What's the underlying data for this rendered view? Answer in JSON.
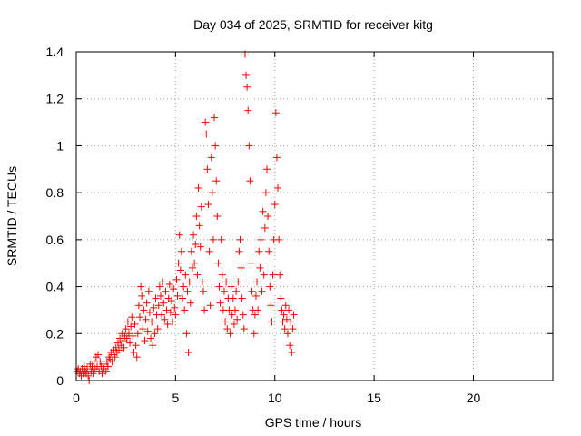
{
  "chart_data": {
    "type": "scatter",
    "title": "Day 034 of 2025, SRMTID for receiver kitg",
    "xlabel": "GPS time / hours",
    "ylabel": "SRMTID / TECUs",
    "xlim": [
      0,
      24
    ],
    "ylim": [
      0,
      1.4
    ],
    "x_ticks": [
      0,
      5,
      10,
      15,
      20
    ],
    "x_tick_labels": [
      "0",
      "5",
      "10",
      "15",
      "20"
    ],
    "y_ticks": [
      0,
      0.2,
      0.4,
      0.6,
      0.8,
      1.0,
      1.2,
      1.4
    ],
    "y_tick_labels": [
      "0",
      "0.2",
      "0.4",
      "0.6",
      "0.8",
      "1",
      "1.2",
      "1.4"
    ],
    "grid": true,
    "marker": "+",
    "series": [
      {
        "name": "SRMTID",
        "color": "#ff0000",
        "points": [
          [
            0.05,
            0.04
          ],
          [
            0.1,
            0.05
          ],
          [
            0.15,
            0.03
          ],
          [
            0.2,
            0.04
          ],
          [
            0.25,
            0.02
          ],
          [
            0.3,
            0.05
          ],
          [
            0.35,
            0.03
          ],
          [
            0.4,
            0.06
          ],
          [
            0.45,
            0.04
          ],
          [
            0.5,
            0.03
          ],
          [
            0.55,
            0.05
          ],
          [
            0.6,
            0.02
          ],
          [
            0.65,
            0.0
          ],
          [
            0.7,
            0.07
          ],
          [
            0.75,
            0.04
          ],
          [
            0.8,
            0.06
          ],
          [
            0.85,
            0.03
          ],
          [
            0.9,
            0.08
          ],
          [
            0.95,
            0.05
          ],
          [
            1.0,
            0.1
          ],
          [
            1.05,
            0.06
          ],
          [
            1.1,
            0.11
          ],
          [
            1.15,
            0.04
          ],
          [
            1.2,
            0.08
          ],
          [
            1.25,
            0.06
          ],
          [
            1.3,
            0.03
          ],
          [
            1.35,
            0.07
          ],
          [
            1.4,
            0.05
          ],
          [
            1.5,
            0.04
          ],
          [
            1.55,
            0.08
          ],
          [
            1.6,
            0.06
          ],
          [
            1.65,
            0.1
          ],
          [
            1.7,
            0.09
          ],
          [
            1.75,
            0.12
          ],
          [
            1.8,
            0.08
          ],
          [
            1.85,
            0.11
          ],
          [
            1.9,
            0.13
          ],
          [
            1.95,
            0.1
          ],
          [
            2.0,
            0.14
          ],
          [
            2.05,
            0.12
          ],
          [
            2.1,
            0.16
          ],
          [
            2.15,
            0.13
          ],
          [
            2.2,
            0.18
          ],
          [
            2.25,
            0.15
          ],
          [
            2.3,
            0.2
          ],
          [
            2.35,
            0.17
          ],
          [
            2.4,
            0.14
          ],
          [
            2.45,
            0.19
          ],
          [
            2.5,
            0.22
          ],
          [
            2.55,
            0.18
          ],
          [
            2.6,
            0.25
          ],
          [
            2.65,
            0.2
          ],
          [
            2.7,
            0.16
          ],
          [
            2.75,
            0.23
          ],
          [
            2.8,
            0.27
          ],
          [
            2.85,
            0.19
          ],
          [
            2.9,
            0.12
          ],
          [
            2.95,
            0.24
          ],
          [
            3.0,
            0.15
          ],
          [
            3.05,
            0.1
          ],
          [
            3.1,
            0.2
          ],
          [
            3.15,
            0.32
          ],
          [
            3.2,
            0.27
          ],
          [
            3.25,
            0.4
          ],
          [
            3.3,
            0.36
          ],
          [
            3.35,
            0.22
          ],
          [
            3.4,
            0.3
          ],
          [
            3.45,
            0.17
          ],
          [
            3.5,
            0.26
          ],
          [
            3.55,
            0.33
          ],
          [
            3.6,
            0.21
          ],
          [
            3.65,
            0.38
          ],
          [
            3.7,
            0.29
          ],
          [
            3.75,
            0.18
          ],
          [
            3.8,
            0.25
          ],
          [
            3.85,
            0.15
          ],
          [
            3.9,
            0.31
          ],
          [
            3.95,
            0.2
          ],
          [
            4.0,
            0.35
          ],
          [
            4.05,
            0.28
          ],
          [
            4.1,
            0.22
          ],
          [
            4.15,
            0.32
          ],
          [
            4.2,
            0.4
          ],
          [
            4.25,
            0.36
          ],
          [
            4.3,
            0.28
          ],
          [
            4.35,
            0.42
          ],
          [
            4.4,
            0.33
          ],
          [
            4.45,
            0.26
          ],
          [
            4.5,
            0.38
          ],
          [
            4.55,
            0.3
          ],
          [
            4.6,
            0.24
          ],
          [
            4.65,
            0.35
          ],
          [
            4.7,
            0.41
          ],
          [
            4.75,
            0.29
          ],
          [
            4.8,
            0.34
          ],
          [
            4.85,
            0.25
          ],
          [
            4.9,
            0.39
          ],
          [
            4.95,
            0.31
          ],
          [
            5.0,
            0.28
          ],
          [
            5.05,
            0.43
          ],
          [
            5.1,
            0.36
          ],
          [
            5.15,
            0.5
          ],
          [
            5.2,
            0.62
          ],
          [
            5.25,
            0.47
          ],
          [
            5.3,
            0.55
          ],
          [
            5.35,
            0.35
          ],
          [
            5.4,
            0.4
          ],
          [
            5.45,
            0.3
          ],
          [
            5.5,
            0.45
          ],
          [
            5.55,
            0.2
          ],
          [
            5.6,
            0.38
          ],
          [
            5.65,
            0.12
          ],
          [
            5.7,
            0.42
          ],
          [
            5.75,
            0.33
          ],
          [
            5.8,
            0.55
          ],
          [
            5.85,
            0.48
          ],
          [
            5.9,
            0.62
          ],
          [
            5.95,
            0.5
          ],
          [
            6.0,
            0.58
          ],
          [
            6.05,
            0.7
          ],
          [
            6.1,
            0.45
          ],
          [
            6.15,
            0.82
          ],
          [
            6.2,
            0.66
          ],
          [
            6.25,
            0.57
          ],
          [
            6.3,
            0.74
          ],
          [
            6.35,
            0.42
          ],
          [
            6.4,
            0.38
          ],
          [
            6.45,
            0.3
          ],
          [
            6.5,
            1.1
          ],
          [
            6.55,
            1.05
          ],
          [
            6.6,
            0.9
          ],
          [
            6.65,
            0.75
          ],
          [
            6.7,
            0.55
          ],
          [
            6.75,
            0.32
          ],
          [
            6.8,
            0.95
          ],
          [
            6.85,
            0.8
          ],
          [
            6.9,
            0.6
          ],
          [
            6.95,
            1.12
          ],
          [
            7.0,
            1.0
          ],
          [
            7.05,
            0.85
          ],
          [
            7.1,
            0.7
          ],
          [
            7.15,
            0.5
          ],
          [
            7.2,
            0.4
          ],
          [
            7.25,
            0.33
          ],
          [
            7.3,
            0.6
          ],
          [
            7.35,
            0.45
          ],
          [
            7.4,
            0.3
          ],
          [
            7.45,
            0.38
          ],
          [
            7.5,
            0.25
          ],
          [
            7.55,
            0.42
          ],
          [
            7.6,
            0.22
          ],
          [
            7.65,
            0.35
          ],
          [
            7.7,
            0.3
          ],
          [
            7.75,
            0.2
          ],
          [
            7.8,
            0.4
          ],
          [
            7.85,
            0.28
          ],
          [
            7.9,
            0.35
          ],
          [
            7.95,
            0.24
          ],
          [
            8.0,
            0.3
          ],
          [
            8.05,
            0.38
          ],
          [
            8.1,
            0.26
          ],
          [
            8.15,
            0.42
          ],
          [
            8.2,
            0.55
          ],
          [
            8.25,
            0.6
          ],
          [
            8.3,
            0.48
          ],
          [
            8.35,
            0.35
          ],
          [
            8.4,
            0.28
          ],
          [
            8.45,
            0.22
          ],
          [
            8.5,
            1.39
          ],
          [
            8.55,
            1.3
          ],
          [
            8.6,
            1.25
          ],
          [
            8.65,
            1.15
          ],
          [
            8.7,
            1.0
          ],
          [
            8.75,
            0.85
          ],
          [
            8.8,
            0.5
          ],
          [
            8.85,
            0.38
          ],
          [
            8.9,
            0.3
          ],
          [
            8.95,
            0.2
          ],
          [
            9.0,
            0.28
          ],
          [
            9.05,
            0.36
          ],
          [
            9.1,
            0.42
          ],
          [
            9.15,
            0.3
          ],
          [
            9.2,
            0.55
          ],
          [
            9.25,
            0.48
          ],
          [
            9.3,
            0.6
          ],
          [
            9.35,
            0.38
          ],
          [
            9.4,
            0.72
          ],
          [
            9.45,
            0.45
          ],
          [
            9.5,
            0.65
          ],
          [
            9.55,
            0.8
          ],
          [
            9.6,
            0.9
          ],
          [
            9.65,
            0.7
          ],
          [
            9.7,
            0.55
          ],
          [
            9.75,
            0.4
          ],
          [
            9.8,
            0.32
          ],
          [
            9.85,
            0.25
          ],
          [
            9.9,
            0.45
          ],
          [
            9.95,
            0.6
          ],
          [
            10.0,
            0.75
          ],
          [
            10.05,
            1.14
          ],
          [
            10.1,
            0.95
          ],
          [
            10.15,
            0.82
          ],
          [
            10.2,
            0.6
          ],
          [
            10.25,
            0.45
          ],
          [
            10.3,
            0.35
          ],
          [
            10.35,
            0.3
          ],
          [
            10.4,
            0.25
          ],
          [
            10.45,
            0.28
          ],
          [
            10.5,
            0.22
          ],
          [
            10.55,
            0.32
          ],
          [
            10.6,
            0.26
          ],
          [
            10.65,
            0.2
          ],
          [
            10.7,
            0.3
          ],
          [
            10.75,
            0.15
          ],
          [
            10.8,
            0.25
          ],
          [
            10.85,
            0.12
          ],
          [
            10.9,
            0.22
          ],
          [
            10.95,
            0.28
          ]
        ]
      }
    ]
  }
}
